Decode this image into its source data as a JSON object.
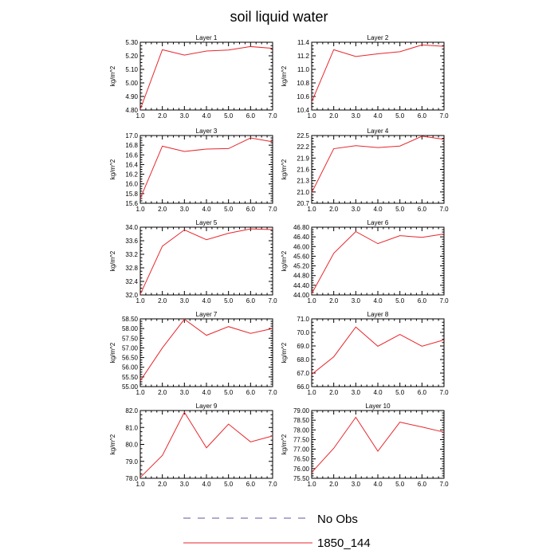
{
  "title": "soil liquid water",
  "legend": [
    {
      "label": "No Obs",
      "style": "dashed",
      "color": "#5a5aa0"
    },
    {
      "label": "1850_144",
      "style": "solid",
      "color": "#e8262b"
    }
  ],
  "chart_data": [
    {
      "type": "line",
      "title": "Layer 1",
      "ylabel": "kg/m^2",
      "x": [
        1,
        2,
        3,
        4,
        5,
        6,
        7
      ],
      "xlim": [
        1.0,
        7.0
      ],
      "ylim": [
        4.8,
        5.3
      ],
      "yticks": [
        "4.80",
        "4.90",
        "5.00",
        "5.10",
        "5.20",
        "5.30"
      ],
      "series": [
        {
          "name": "1850_144",
          "values": [
            4.805,
            5.245,
            5.205,
            5.235,
            5.243,
            5.268,
            5.255
          ]
        }
      ]
    },
    {
      "type": "line",
      "title": "Layer 2",
      "ylabel": "kg/m^2",
      "x": [
        1,
        2,
        3,
        4,
        5,
        6,
        7
      ],
      "xlim": [
        1.0,
        7.0
      ],
      "ylim": [
        10.4,
        11.4
      ],
      "yticks": [
        "10.4",
        "10.6",
        "10.8",
        "11.0",
        "11.2",
        "11.4"
      ],
      "series": [
        {
          "name": "1850_144",
          "values": [
            10.52,
            11.29,
            11.19,
            11.23,
            11.26,
            11.36,
            11.34
          ]
        }
      ]
    },
    {
      "type": "line",
      "title": "Layer 3",
      "ylabel": "kg/m^2",
      "x": [
        1,
        2,
        3,
        4,
        5,
        6,
        7
      ],
      "xlim": [
        1.0,
        7.0
      ],
      "ylim": [
        15.6,
        17.0
      ],
      "yticks": [
        "15.6",
        "15.8",
        "16.0",
        "16.2",
        "16.4",
        "16.6",
        "16.8",
        "17.0"
      ],
      "series": [
        {
          "name": "1850_144",
          "values": [
            15.7,
            16.78,
            16.67,
            16.72,
            16.73,
            16.95,
            16.87
          ]
        }
      ]
    },
    {
      "type": "line",
      "title": "Layer 4",
      "ylabel": "kg/m^2",
      "x": [
        1,
        2,
        3,
        4,
        5,
        6,
        7
      ],
      "xlim": [
        1.0,
        7.0
      ],
      "ylim": [
        20.7,
        22.5
      ],
      "yticks": [
        "20.7",
        "21.0",
        "21.3",
        "21.6",
        "21.9",
        "22.2",
        "22.5"
      ],
      "series": [
        {
          "name": "1850_144",
          "values": [
            20.98,
            22.15,
            22.23,
            22.18,
            22.22,
            22.48,
            22.4
          ]
        }
      ]
    },
    {
      "type": "line",
      "title": "Layer 5",
      "ylabel": "kg/m^2",
      "x": [
        1,
        2,
        3,
        4,
        5,
        6,
        7
      ],
      "xlim": [
        1.0,
        7.0
      ],
      "ylim": [
        32.0,
        34.0
      ],
      "yticks": [
        "32.0",
        "32.4",
        "32.8",
        "33.2",
        "33.6",
        "34.0"
      ],
      "series": [
        {
          "name": "1850_144",
          "values": [
            32.02,
            33.44,
            33.92,
            33.63,
            33.82,
            33.95,
            33.93
          ]
        }
      ]
    },
    {
      "type": "line",
      "title": "Layer 6",
      "ylabel": "kg/m^2",
      "x": [
        1,
        2,
        3,
        4,
        5,
        6,
        7
      ],
      "xlim": [
        1.0,
        7.0
      ],
      "ylim": [
        44.0,
        46.8
      ],
      "yticks": [
        "44.00",
        "44.40",
        "44.80",
        "45.20",
        "45.60",
        "46.00",
        "46.40",
        "46.80"
      ],
      "series": [
        {
          "name": "1850_144",
          "values": [
            44.05,
            45.72,
            46.62,
            46.12,
            46.45,
            46.38,
            46.52
          ]
        }
      ]
    },
    {
      "type": "line",
      "title": "Layer 7",
      "ylabel": "kg/m^2",
      "x": [
        1,
        2,
        3,
        4,
        5,
        6,
        7
      ],
      "xlim": [
        1.0,
        7.0
      ],
      "ylim": [
        55.0,
        58.5
      ],
      "yticks": [
        "55.00",
        "55.50",
        "56.00",
        "56.50",
        "57.00",
        "57.50",
        "58.00",
        "58.50"
      ],
      "series": [
        {
          "name": "1850_144",
          "values": [
            55.3,
            57.0,
            58.48,
            57.65,
            58.1,
            57.75,
            58.0
          ]
        }
      ]
    },
    {
      "type": "line",
      "title": "Layer 8",
      "ylabel": "kg/m^2",
      "x": [
        1,
        2,
        3,
        4,
        5,
        6,
        7
      ],
      "xlim": [
        1.0,
        7.0
      ],
      "ylim": [
        66.0,
        71.0
      ],
      "yticks": [
        "66.0",
        "67.0",
        "68.0",
        "69.0",
        "70.0",
        "71.0"
      ],
      "series": [
        {
          "name": "1850_144",
          "values": [
            66.9,
            68.2,
            70.4,
            68.98,
            69.85,
            68.98,
            69.45
          ]
        }
      ]
    },
    {
      "type": "line",
      "title": "Layer 9",
      "ylabel": "kg/m^2",
      "x": [
        1,
        2,
        3,
        4,
        5,
        6,
        7
      ],
      "xlim": [
        1.0,
        7.0
      ],
      "ylim": [
        78.0,
        82.0
      ],
      "yticks": [
        "78.0",
        "79.0",
        "80.0",
        "81.0",
        "82.0"
      ],
      "series": [
        {
          "name": "1850_144",
          "values": [
            78.05,
            79.35,
            81.9,
            79.8,
            81.2,
            80.15,
            80.5
          ]
        }
      ]
    },
    {
      "type": "line",
      "title": "Layer 10",
      "ylabel": "kg/m^2",
      "x": [
        1,
        2,
        3,
        4,
        5,
        6,
        7
      ],
      "xlim": [
        1.0,
        7.0
      ],
      "ylim": [
        75.5,
        79.0
      ],
      "yticks": [
        "75.50",
        "76.00",
        "76.50",
        "77.00",
        "77.50",
        "78.00",
        "78.50",
        "79.00"
      ],
      "series": [
        {
          "name": "1850_144",
          "values": [
            75.8,
            77.05,
            78.65,
            76.9,
            78.4,
            78.15,
            77.88
          ]
        }
      ]
    }
  ],
  "xticks": [
    "1.0",
    "2.0",
    "3.0",
    "4.0",
    "5.0",
    "6.0",
    "7.0"
  ]
}
